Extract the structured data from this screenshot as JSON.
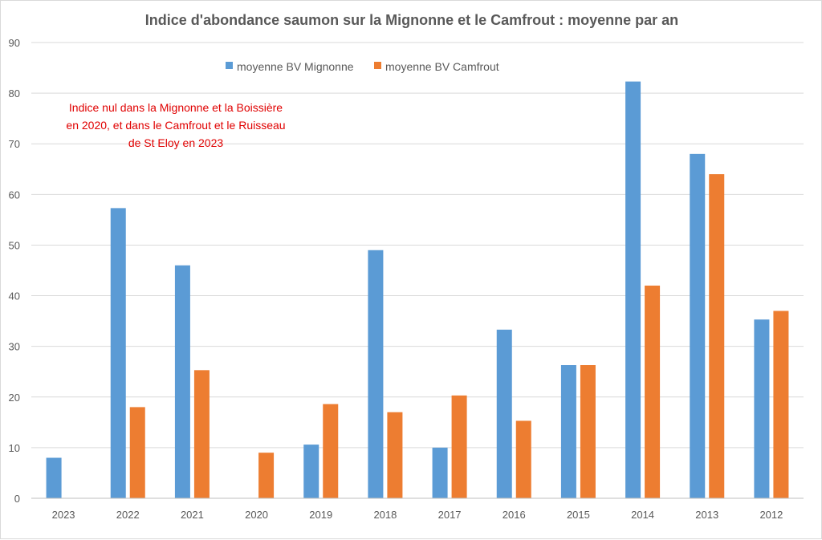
{
  "chart_data": {
    "type": "bar",
    "title": "Indice d'abondance saumon sur la Mignonne et le Camfrout : moyenne par an",
    "xlabel": "",
    "ylabel": "",
    "ylim": [
      0,
      90
    ],
    "yticks": [
      "0",
      "10",
      "20",
      "30",
      "40",
      "50",
      "60",
      "70",
      "80",
      "90"
    ],
    "categories": [
      "2023",
      "2022",
      "2021",
      "2020",
      "2019",
      "2018",
      "2017",
      "2016",
      "2015",
      "2014",
      "2013",
      "2012"
    ],
    "series": [
      {
        "name": "moyenne BV Mignonne",
        "color": "#5b9bd5",
        "values": [
          8,
          57.3,
          46,
          0,
          10.6,
          49,
          10,
          33.3,
          26.3,
          82.3,
          68,
          35.3
        ]
      },
      {
        "name": "moyenne BV Camfrout",
        "color": "#ed7d31",
        "values": [
          0,
          18,
          25.3,
          9,
          18.6,
          17,
          20.3,
          15.3,
          26.3,
          42,
          64,
          37
        ]
      }
    ],
    "grid": true,
    "legend_position": "top",
    "annotation": [
      "Indice nul dans la Mignonne et la Boissière",
      "en 2020, et dans le Camfrout et le Ruisseau",
      "de St Eloy en 2023"
    ]
  }
}
